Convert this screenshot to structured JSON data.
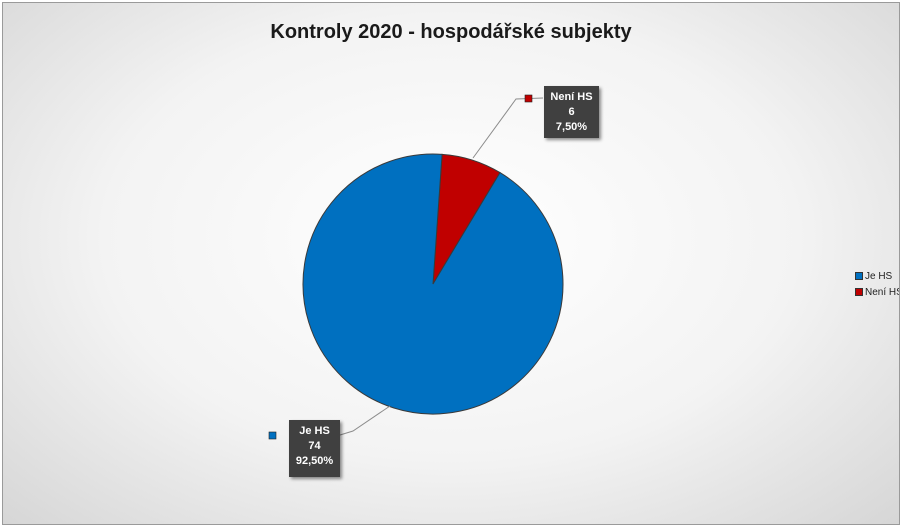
{
  "chart_data": {
    "type": "pie",
    "title": "Kontroly 2020 - hospodářské subjekty",
    "slices": [
      {
        "name": "Je HS",
        "value": 74,
        "percent_label": "92,50%",
        "color": "#0070c0"
      },
      {
        "name": "Není HS",
        "value": 6,
        "percent_label": "7,50%",
        "color": "#c00000"
      }
    ],
    "legend_position": "right",
    "start_slice": "Není HS",
    "data_labels": true
  }
}
